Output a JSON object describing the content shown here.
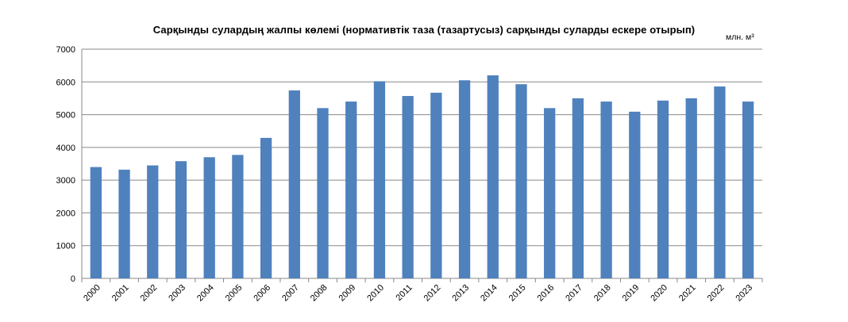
{
  "chart_data": {
    "type": "bar",
    "title": "Сарқынды сулардың жалпы көлемі (нормативтік таза (тазартусыз) сарқынды суларды ескере отырып)",
    "unit_label": "млн. м³",
    "xlabel": "",
    "ylabel": "",
    "categories": [
      "2000",
      "2001",
      "2002",
      "2003",
      "2004",
      "2005",
      "2006",
      "2007",
      "2008",
      "2009",
      "2010",
      "2011",
      "2012",
      "2013",
      "2014",
      "2015",
      "2016",
      "2017",
      "2018",
      "2019",
      "2020",
      "2021",
      "2022",
      "2023"
    ],
    "values": [
      3400,
      3320,
      3450,
      3580,
      3700,
      3770,
      4290,
      5740,
      5200,
      5400,
      6020,
      5570,
      5670,
      6050,
      6200,
      5930,
      5200,
      5500,
      5400,
      5090,
      5430,
      5500,
      5860,
      5400
    ],
    "ylim": [
      0,
      7000
    ],
    "yticks": [
      0,
      1000,
      2000,
      3000,
      4000,
      5000,
      6000,
      7000
    ],
    "bar_color": "#4F81BD",
    "grid": true,
    "legend": "none"
  }
}
